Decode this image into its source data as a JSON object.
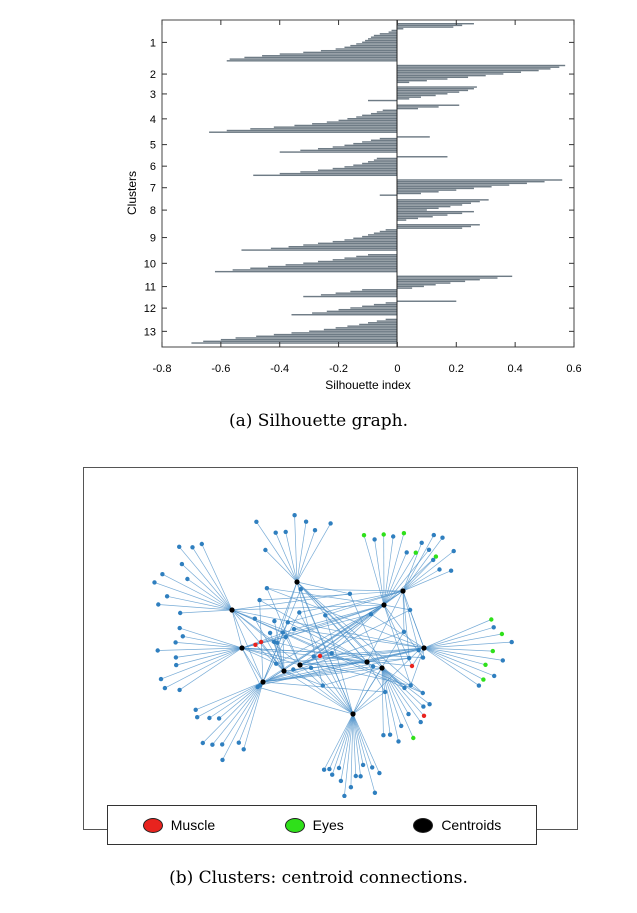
{
  "chart_data": [
    {
      "type": "bar",
      "orientation": "horizontal",
      "xlabel": "Silhouette index",
      "ylabel": "Clusters",
      "xlim": [
        -0.8,
        0.6
      ],
      "xticks": [
        "-0.8",
        "-0.6",
        "-0.4",
        "-0.2",
        "0",
        "0.2",
        "0.4",
        "0.6"
      ],
      "categories": [
        "1",
        "2",
        "3",
        "4",
        "5",
        "6",
        "7",
        "8",
        "9",
        "10",
        "11",
        "12",
        "13"
      ],
      "bar_color": "#6e7b85",
      "clusters": [
        {
          "label": "1",
          "values": [
            0.26,
            0.22,
            0.19,
            0.02,
            -0.02,
            -0.03,
            -0.06,
            -0.08,
            -0.09,
            -0.1,
            -0.11,
            -0.12,
            -0.14,
            -0.16,
            -0.18,
            -0.21,
            -0.26,
            -0.32,
            -0.4,
            -0.46,
            -0.52,
            -0.57,
            -0.58
          ]
        },
        {
          "label": "2",
          "values": [
            0.57,
            0.55,
            0.52,
            0.48,
            0.42,
            0.36,
            0.3,
            0.24,
            0.17,
            0.1,
            0.04
          ]
        },
        {
          "label": "3",
          "values": [
            0.27,
            0.26,
            0.24,
            0.21,
            0.17,
            0.13,
            0.08,
            0.04,
            -0.1
          ]
        },
        {
          "label": "4",
          "values": [
            0.21,
            0.14,
            0.07,
            -0.05,
            -0.07,
            -0.09,
            -0.12,
            -0.14,
            -0.17,
            -0.2,
            -0.24,
            -0.29,
            -0.35,
            -0.42,
            -0.5,
            -0.58,
            -0.64
          ]
        },
        {
          "label": "5",
          "values": [
            0.11,
            -0.06,
            -0.09,
            -0.12,
            -0.15,
            -0.18,
            -0.22,
            -0.27,
            -0.33,
            -0.4
          ]
        },
        {
          "label": "6",
          "values": [
            0.17,
            -0.07,
            -0.08,
            -0.1,
            -0.12,
            -0.15,
            -0.18,
            -0.22,
            -0.27,
            -0.33,
            -0.4,
            -0.49
          ]
        },
        {
          "label": "7",
          "values": [
            0.56,
            0.5,
            0.44,
            0.38,
            0.32,
            0.26,
            0.2,
            0.14,
            0.08,
            -0.06
          ]
        },
        {
          "label": "8",
          "values": [
            0.31,
            0.28,
            0.25,
            0.22,
            0.18,
            0.14,
            0.1,
            0.26,
            0.22,
            0.17,
            0.12,
            0.07,
            0.03
          ]
        },
        {
          "label": "9",
          "values": [
            0.28,
            0.25,
            0.22,
            -0.04,
            -0.06,
            -0.08,
            -0.1,
            -0.12,
            -0.15,
            -0.18,
            -0.22,
            -0.27,
            -0.32,
            -0.37,
            -0.43,
            -0.53
          ]
        },
        {
          "label": "10",
          "values": [
            -0.1,
            -0.14,
            -0.18,
            -0.22,
            -0.27,
            -0.32,
            -0.38,
            -0.44,
            -0.5,
            -0.56,
            -0.62
          ]
        },
        {
          "label": "11",
          "values": [
            0.39,
            0.34,
            0.28,
            0.23,
            0.18,
            0.13,
            0.09,
            0.05,
            -0.12,
            -0.16,
            -0.21,
            -0.26,
            -0.32
          ]
        },
        {
          "label": "12",
          "values": [
            0.2,
            -0.04,
            -0.08,
            -0.12,
            -0.16,
            -0.2,
            -0.24,
            -0.29,
            -0.36
          ]
        },
        {
          "label": "13",
          "values": [
            -0.04,
            -0.07,
            -0.1,
            -0.13,
            -0.17,
            -0.21,
            -0.25,
            -0.3,
            -0.36,
            -0.42,
            -0.48,
            -0.55,
            -0.6,
            -0.66,
            -0.7
          ]
        }
      ]
    },
    {
      "type": "network",
      "legend": [
        {
          "label": "Muscle",
          "color": "#e8231e"
        },
        {
          "label": "Eyes",
          "color": "#2fe01a"
        },
        {
          "label": "Centroids",
          "color": "#000000"
        }
      ],
      "edge_color": "#4a8fc8",
      "node_color": "#2f7fbf"
    }
  ],
  "captions": {
    "a": "(a) Silhouette graph.",
    "b": "(b) Clusters: centroid connections."
  }
}
